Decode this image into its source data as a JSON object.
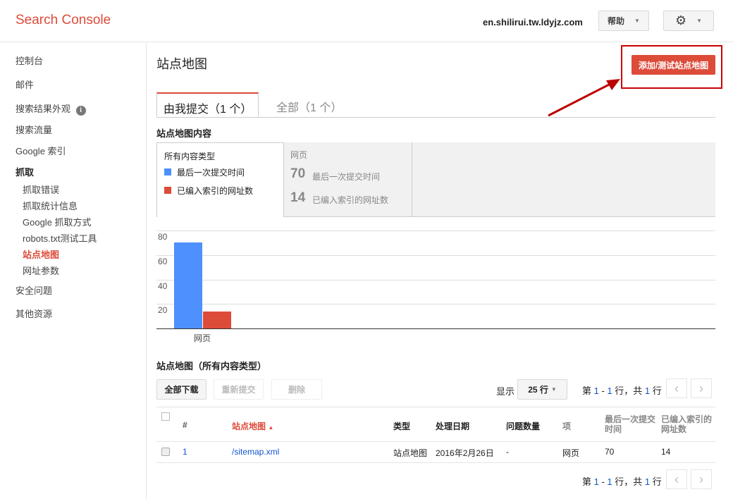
{
  "header": {
    "logo": "Search Console",
    "site": "en.shilirui.tw.ldyjz.com",
    "help": "帮助",
    "settings_icon": "gear-icon"
  },
  "sidebar": {
    "items": [
      {
        "label": "控制台"
      },
      {
        "label": "邮件"
      },
      {
        "label": "搜索结果外观"
      },
      {
        "label": "搜索流量"
      },
      {
        "label": "Google 索引"
      },
      {
        "label": "抓取"
      },
      {
        "label": "抓取错误"
      },
      {
        "label": "抓取统计信息"
      },
      {
        "label": "Google 抓取方式"
      },
      {
        "label": "robots.txt测试工具"
      },
      {
        "label": "站点地图"
      },
      {
        "label": "网址参数"
      },
      {
        "label": "安全问题"
      },
      {
        "label": "其他资源"
      }
    ]
  },
  "page": {
    "title": "站点地图",
    "add_button": "添加/测试站点地图"
  },
  "tabs": [
    {
      "label": "由我提交（1 个）",
      "active": true
    },
    {
      "label": "全部（1 个）",
      "active": false
    }
  ],
  "content": {
    "heading": "站点地图内容",
    "all_types": "所有内容类型",
    "legend_submitted": "最后一次提交时间",
    "legend_indexed": "已编入索引的网址数",
    "type_label": "网页",
    "submitted": "70",
    "indexed": "14"
  },
  "colors": {
    "submitted": "#4d90fe",
    "indexed": "#dd4b39",
    "accent": "#dd4b39"
  },
  "chart_data": {
    "type": "bar",
    "categories": [
      "网页"
    ],
    "series": [
      {
        "name": "最后一次提交时间",
        "values": [
          70
        ]
      },
      {
        "name": "已编入索引的网址数",
        "values": [
          14
        ]
      }
    ],
    "yticks": [
      "20",
      "40",
      "60",
      "80"
    ],
    "ylim": [
      0,
      80
    ],
    "grid": true
  },
  "table": {
    "heading": "站点地图（所有内容类型）",
    "download": "全部下载",
    "resubmit": "重新提交",
    "delete": "删除",
    "show": "显示",
    "rows_select": "25 行",
    "pagination": {
      "prefix": "第 ",
      "from": "1",
      "dash": " - ",
      "to": "1",
      "mid": " 行，共 ",
      "total": "1",
      "suffix": " 行"
    },
    "columns": [
      "#",
      "站点地图",
      "类型",
      "处理日期",
      "问题数量",
      "项",
      "最后一次提交时间",
      "已编入索引的网址数"
    ],
    "rows": [
      {
        "num": "1",
        "path": "/sitemap.xml",
        "type": "站点地图",
        "date": "2016年2月26日",
        "issues": "-",
        "item": "网页",
        "submitted": "70",
        "indexed": "14"
      }
    ]
  }
}
